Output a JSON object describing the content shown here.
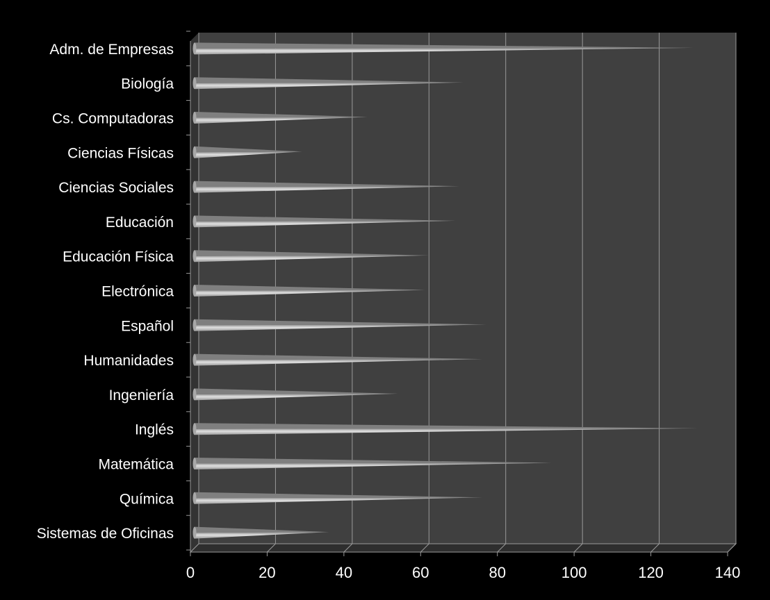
{
  "chart_data": {
    "type": "bar",
    "orientation": "horizontal",
    "style": "3d-cone",
    "title": "",
    "xlabel": "",
    "ylabel": "",
    "categories": [
      "Adm. de Empresas",
      "Biología",
      "Cs. Computadoras",
      "Ciencias Físicas",
      "Ciencias Sociales",
      "Educación",
      "Educación Física",
      "Electrónica",
      "Español",
      "Humanidades",
      "Ingeniería",
      "Inglés",
      "Matemática",
      "Química",
      "Sistemas de Oficinas"
    ],
    "values": [
      130,
      70,
      45,
      28,
      69,
      68,
      61,
      60,
      76,
      75,
      53,
      131,
      93,
      75,
      35
    ],
    "xlim": [
      0,
      140
    ],
    "xticks": [
      "0",
      "20",
      "40",
      "60",
      "80",
      "100",
      "120",
      "140"
    ],
    "grid": true,
    "legend": "none",
    "colors": {
      "background": "#000000",
      "plot_wall": "#404040",
      "grid": "#9a9a9a",
      "bar_light": "#d4d4d4",
      "bar_dark": "#7f7f7f",
      "text": "#ffffff"
    }
  }
}
